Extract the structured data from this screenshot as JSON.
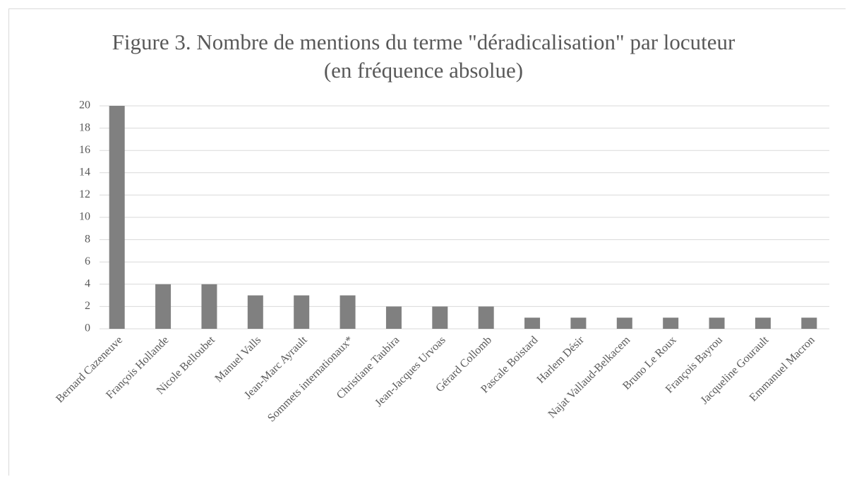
{
  "chart_data": {
    "type": "bar",
    "title": "Figure 3. Nombre de mentions du terme \"déradicalisation\" par locuteur (en fréquence absolue)",
    "categories": [
      "Bernard Cazeneuve",
      "François Hollande",
      "Nicole Belloubet",
      "Manuel Valls",
      "Jean-Marc Ayrault",
      "Sommets internationaux*",
      "Christiane Taubira",
      "Jean-Jacques Urvoas",
      "Gérard Collomb",
      "Pascale Boistard",
      "Harlem Désir",
      "Najat Vallaud-Belkacem",
      "Bruno Le Roux",
      "François Bayrou",
      "Jacqueline Gourault",
      "Emmanuel Macron"
    ],
    "values": [
      20,
      4,
      4,
      3,
      3,
      3,
      2,
      2,
      2,
      1,
      1,
      1,
      1,
      1,
      1,
      1
    ],
    "color": "#808080",
    "ylim": [
      0,
      20
    ],
    "yticks": [
      0,
      2,
      4,
      6,
      8,
      10,
      12,
      14,
      16,
      18,
      20
    ],
    "grid": true
  }
}
